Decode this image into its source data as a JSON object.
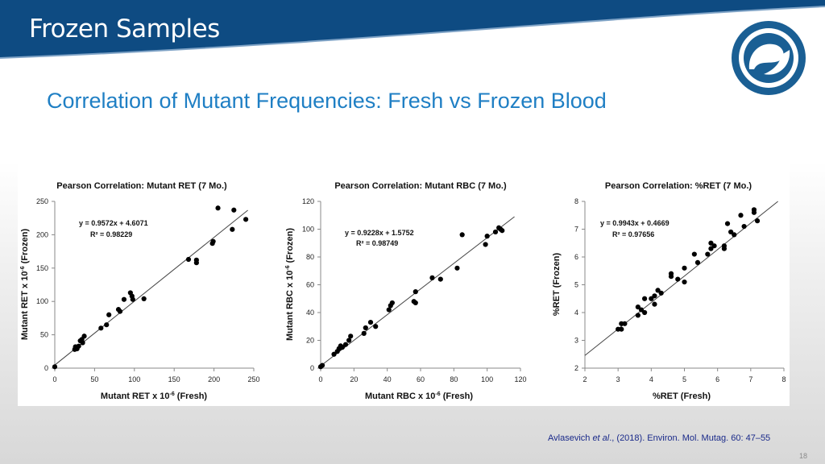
{
  "slide": {
    "title": "Frozen Samples",
    "subtitle": "Correlation of Mutant Frequencies: Fresh vs Frozen Blood",
    "citation": {
      "pre": "Avlasevich ",
      "em": "et al",
      "post": "., (2018). Environ. Mol. Mutag. 60: 47–55"
    },
    "page_number": "18",
    "colors": {
      "banner": "#0e4b82",
      "subtitle": "#1f7fc4",
      "logo": "#1a5f94"
    }
  },
  "chart_data": [
    {
      "type": "scatter",
      "title": "Pearson Correlation: Mutant RET (7 Mo.)",
      "xlabel_main": "Mutant RET x 10",
      "xlabel_exp": "-6",
      "xlabel_tail": " (Fresh)",
      "ylabel_main": "Mutant RET x 10",
      "ylabel_exp": "-6",
      "ylabel_tail": " (Frozen)",
      "equation": "y = 0.9572x + 4.6071",
      "r2_label": "R² = 0.98229",
      "slope": 0.9572,
      "intercept": 4.6071,
      "xlim": [
        0,
        250
      ],
      "ylim": [
        0,
        250
      ],
      "xticks": [
        0,
        50,
        100,
        150,
        200,
        250
      ],
      "yticks": [
        0,
        50,
        100,
        150,
        200,
        250
      ],
      "points": [
        [
          0,
          2
        ],
        [
          25,
          28
        ],
        [
          26,
          32
        ],
        [
          27,
          30
        ],
        [
          28,
          29
        ],
        [
          30,
          33
        ],
        [
          32,
          41
        ],
        [
          34,
          43
        ],
        [
          35,
          38
        ],
        [
          37,
          48
        ],
        [
          58,
          60
        ],
        [
          65,
          65
        ],
        [
          68,
          80
        ],
        [
          80,
          88
        ],
        [
          82,
          85
        ],
        [
          87,
          103
        ],
        [
          95,
          113
        ],
        [
          97,
          108
        ],
        [
          98,
          103
        ],
        [
          112,
          104
        ],
        [
          168,
          163
        ],
        [
          178,
          158
        ],
        [
          178,
          162
        ],
        [
          198,
          187
        ],
        [
          199,
          190
        ],
        [
          205,
          240
        ],
        [
          223,
          208
        ],
        [
          225,
          237
        ],
        [
          240,
          223
        ]
      ]
    },
    {
      "type": "scatter",
      "title": "Pearson Correlation: Mutant RBC (7 Mo.)",
      "xlabel_main": "Mutant RBC x 10",
      "xlabel_exp": "-6",
      "xlabel_tail": " (Fresh)",
      "ylabel_main": "Mutant RBC x 10",
      "ylabel_exp": "-6",
      "ylabel_tail": " (Frozen)",
      "equation": "y = 0.9228x + 1.5752",
      "r2_label": "R² = 0.98749",
      "slope": 0.9228,
      "intercept": 1.5752,
      "xlim": [
        0,
        120
      ],
      "ylim": [
        0,
        120
      ],
      "xticks": [
        0,
        20,
        40,
        60,
        80,
        100,
        120
      ],
      "yticks": [
        0,
        20,
        40,
        60,
        80,
        100,
        120
      ],
      "points": [
        [
          0,
          1
        ],
        [
          1,
          2
        ],
        [
          8,
          10
        ],
        [
          10,
          12
        ],
        [
          11,
          14
        ],
        [
          12,
          16
        ],
        [
          13,
          15
        ],
        [
          15,
          17
        ],
        [
          17,
          20
        ],
        [
          18,
          23
        ],
        [
          26,
          25
        ],
        [
          27,
          29
        ],
        [
          30,
          33
        ],
        [
          33,
          30
        ],
        [
          41,
          42
        ],
        [
          42,
          45
        ],
        [
          43,
          47
        ],
        [
          56,
          48
        ],
        [
          57,
          47
        ],
        [
          57,
          55
        ],
        [
          67,
          65
        ],
        [
          72,
          64
        ],
        [
          82,
          72
        ],
        [
          85,
          96
        ],
        [
          99,
          89
        ],
        [
          100,
          95
        ],
        [
          105,
          98
        ],
        [
          107,
          101
        ],
        [
          108,
          100
        ],
        [
          109,
          99
        ]
      ]
    },
    {
      "type": "scatter",
      "title": "Pearson Correlation: %RET (7 Mo.)",
      "xlabel_main": "%RET (Fresh)",
      "xlabel_exp": "",
      "xlabel_tail": "",
      "ylabel_main": "%RET (Frozen)",
      "ylabel_exp": "",
      "ylabel_tail": "",
      "equation": "y = 0.9943x + 0.4669",
      "r2_label": "R² = 0.97656",
      "slope": 0.9943,
      "intercept": 0.4669,
      "xlim": [
        2,
        8
      ],
      "ylim": [
        2,
        8
      ],
      "xticks": [
        2,
        3,
        4,
        5,
        6,
        7,
        8
      ],
      "yticks": [
        2,
        3,
        4,
        5,
        6,
        7,
        8
      ],
      "points": [
        [
          3.0,
          3.4
        ],
        [
          3.1,
          3.4
        ],
        [
          3.1,
          3.6
        ],
        [
          3.2,
          3.6
        ],
        [
          3.6,
          3.9
        ],
        [
          3.6,
          4.2
        ],
        [
          3.7,
          4.1
        ],
        [
          3.8,
          4.0
        ],
        [
          3.8,
          4.5
        ],
        [
          4.0,
          4.5
        ],
        [
          4.1,
          4.3
        ],
        [
          4.1,
          4.6
        ],
        [
          4.2,
          4.8
        ],
        [
          4.3,
          4.7
        ],
        [
          4.6,
          5.3
        ],
        [
          4.6,
          5.4
        ],
        [
          4.8,
          5.2
        ],
        [
          5.0,
          5.1
        ],
        [
          5.0,
          5.6
        ],
        [
          5.3,
          6.1
        ],
        [
          5.4,
          5.8
        ],
        [
          5.7,
          6.1
        ],
        [
          5.8,
          6.3
        ],
        [
          5.8,
          6.5
        ],
        [
          5.9,
          6.4
        ],
        [
          6.2,
          6.3
        ],
        [
          6.2,
          6.4
        ],
        [
          6.3,
          7.2
        ],
        [
          6.4,
          6.9
        ],
        [
          6.5,
          6.8
        ],
        [
          6.7,
          7.5
        ],
        [
          6.8,
          7.1
        ],
        [
          7.1,
          7.6
        ],
        [
          7.1,
          7.7
        ],
        [
          7.2,
          7.3
        ]
      ]
    }
  ]
}
